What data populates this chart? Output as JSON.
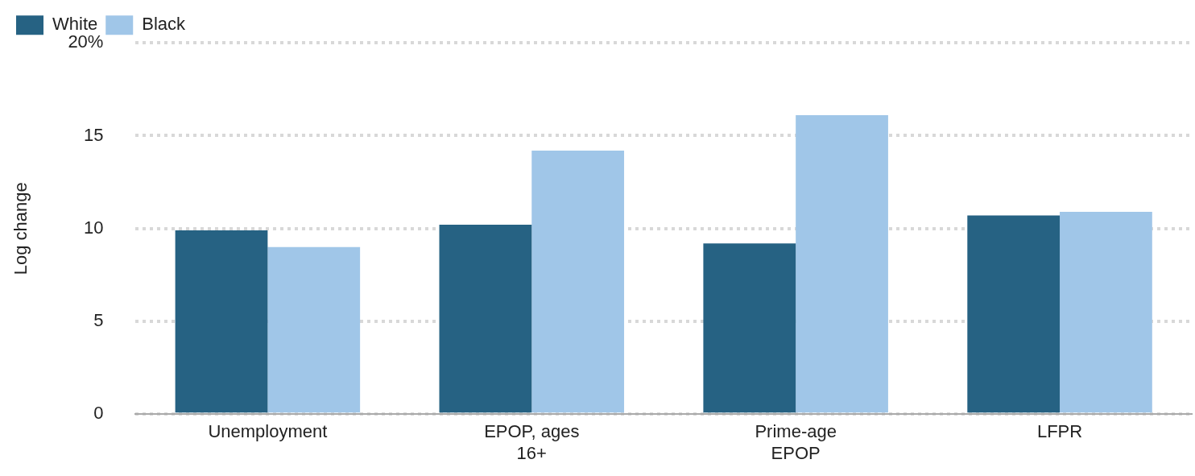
{
  "chart_data": {
    "type": "bar",
    "ylabel": "Log change",
    "categories": [
      "Unemployment",
      "EPOP, ages 16+",
      "Prime-age EPOP",
      "LFPR"
    ],
    "series": [
      {
        "name": "White",
        "color": "#266283",
        "values": [
          9.9,
          10.2,
          9.2,
          10.7
        ]
      },
      {
        "name": "Black",
        "color": "#a0c6e8",
        "values": [
          9.0,
          14.2,
          16.1,
          10.9
        ]
      }
    ],
    "ylim": [
      0,
      20
    ],
    "yticks": [
      0,
      5,
      10,
      15,
      {
        "value": 20,
        "label": "20%"
      }
    ],
    "grid": "y",
    "legend": "top left"
  }
}
